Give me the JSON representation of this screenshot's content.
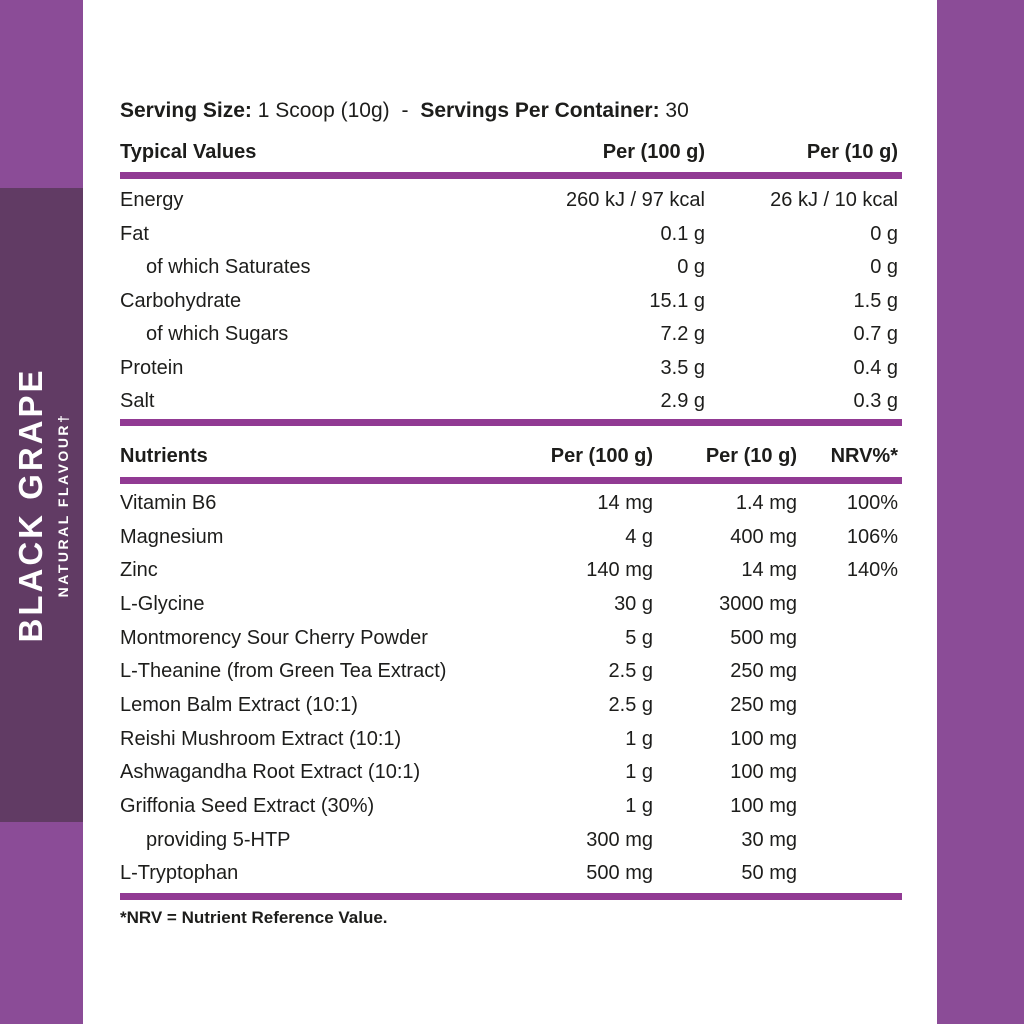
{
  "colors": {
    "band": "#8b4c97",
    "flavour_box": "#613b64",
    "rule": "#913a93",
    "text": "#1d1d1b",
    "card": "#ffffff"
  },
  "sidebar": {
    "flavour_name": "BLACK GRAPE",
    "flavour_sub": "NATURAL FLAVOUR†"
  },
  "serving": {
    "size_label": "Serving Size:",
    "size_value": "1 Scoop (10g)",
    "separator": "-",
    "container_label": "Servings Per Container:",
    "container_value": "30"
  },
  "typical_values": {
    "title": "Typical Values",
    "col_per100": "Per (100 g)",
    "col_per10": "Per (10 g)",
    "rows": [
      {
        "label": "Energy",
        "per100": "260 kJ / 97 kcal",
        "per10": "26 kJ / 10 kcal"
      },
      {
        "label": "Fat",
        "per100": "0.1 g",
        "per10": "0 g"
      },
      {
        "label": "of which Saturates",
        "per100": "0 g",
        "per10": "0 g"
      },
      {
        "label": "Carbohydrate",
        "per100": "15.1 g",
        "per10": "1.5 g"
      },
      {
        "label": "of which Sugars",
        "per100": "7.2 g",
        "per10": "0.7 g"
      },
      {
        "label": "Protein",
        "per100": "3.5 g",
        "per10": "0.4 g"
      },
      {
        "label": "Salt",
        "per100": "2.9 g",
        "per10": "0.3 g"
      }
    ]
  },
  "nutrients": {
    "title": "Nutrients",
    "col_per100": "Per (100 g)",
    "col_per10": "Per (10 g)",
    "col_nrv": "NRV%*",
    "rows": [
      {
        "label": "Vitamin B6",
        "per100": "14 mg",
        "per10": "1.4 mg",
        "nrv": "100%"
      },
      {
        "label": "Magnesium",
        "per100": "4 g",
        "per10": "400 mg",
        "nrv": "106%"
      },
      {
        "label": "Zinc",
        "per100": "140 mg",
        "per10": "14 mg",
        "nrv": "140%"
      },
      {
        "label": "L-Glycine",
        "per100": "30 g",
        "per10": "3000 mg",
        "nrv": ""
      },
      {
        "label": "Montmorency Sour Cherry Powder",
        "per100": "5 g",
        "per10": "500 mg",
        "nrv": ""
      },
      {
        "label": "L-Theanine (from Green Tea Extract)",
        "per100": "2.5 g",
        "per10": "250 mg",
        "nrv": ""
      },
      {
        "label": "Lemon Balm Extract (10:1)",
        "per100": "2.5 g",
        "per10": "250 mg",
        "nrv": ""
      },
      {
        "label": "Reishi Mushroom Extract (10:1)",
        "per100": "1 g",
        "per10": "100 mg",
        "nrv": ""
      },
      {
        "label": "Ashwagandha Root Extract (10:1)",
        "per100": "1 g",
        "per10": "100 mg",
        "nrv": ""
      },
      {
        "label": "Griffonia Seed Extract (30%)",
        "per100": "1 g",
        "per10": "100 mg",
        "nrv": ""
      },
      {
        "label": "providing 5-HTP",
        "per100": "300 mg",
        "per10": "30 mg",
        "nrv": ""
      },
      {
        "label": "L-Tryptophan",
        "per100": "500 mg",
        "per10": "50 mg",
        "nrv": ""
      }
    ]
  },
  "footnote": "*NRV = Nutrient Reference Value."
}
